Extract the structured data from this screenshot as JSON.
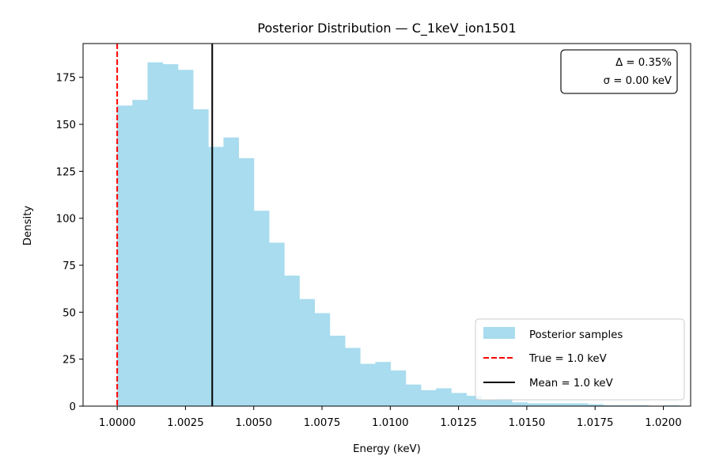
{
  "chart_data": {
    "type": "bar",
    "title": "Posterior Distribution — C_1keV_ion1501",
    "xlabel": "Energy (keV)",
    "ylabel": "Density",
    "xlim": [
      0.99875,
      1.021
    ],
    "ylim": [
      0,
      193
    ],
    "xticks": [
      1.0,
      1.0025,
      1.005,
      1.0075,
      1.01,
      1.0125,
      1.015,
      1.0175,
      1.02
    ],
    "xtick_labels": [
      "1.0000",
      "1.0025",
      "1.0050",
      "1.0075",
      "1.0100",
      "1.0125",
      "1.0150",
      "1.0175",
      "1.0200"
    ],
    "yticks": [
      0,
      25,
      50,
      75,
      100,
      125,
      150,
      175
    ],
    "ytick_labels": [
      "0",
      "25",
      "50",
      "75",
      "100",
      "125",
      "150",
      "175"
    ],
    "grid": false,
    "histogram": {
      "name": "Posterior samples",
      "color": "#a8dcee",
      "bin_start": 1.0,
      "bin_width": 0.000556,
      "values": [
        160,
        163,
        183,
        182,
        179,
        158,
        138,
        143,
        132,
        104,
        87,
        69.5,
        57,
        49.5,
        37.5,
        31,
        22.5,
        23.5,
        19,
        11.5,
        8.5,
        9.5,
        7,
        5.5,
        3.5,
        4,
        2,
        1.5,
        1.5,
        1.5,
        1.5,
        1,
        0.5,
        0.5,
        0.5,
        0,
        0.5
      ]
    },
    "vlines": [
      {
        "name": "True = 1.0 keV",
        "x": 1.0,
        "color": "#ff0000",
        "style": "dashed"
      },
      {
        "name": "Mean = 1.0 keV",
        "x": 1.00348,
        "color": "#000000",
        "style": "solid"
      }
    ],
    "legend": {
      "location": "lower-right",
      "entries": [
        "Posterior samples",
        "True = 1.0 keV",
        "Mean = 1.0 keV"
      ]
    },
    "annotation": {
      "location": "top-right",
      "lines": [
        "Δ = 0.35%",
        "σ = 0.00 keV"
      ]
    }
  }
}
